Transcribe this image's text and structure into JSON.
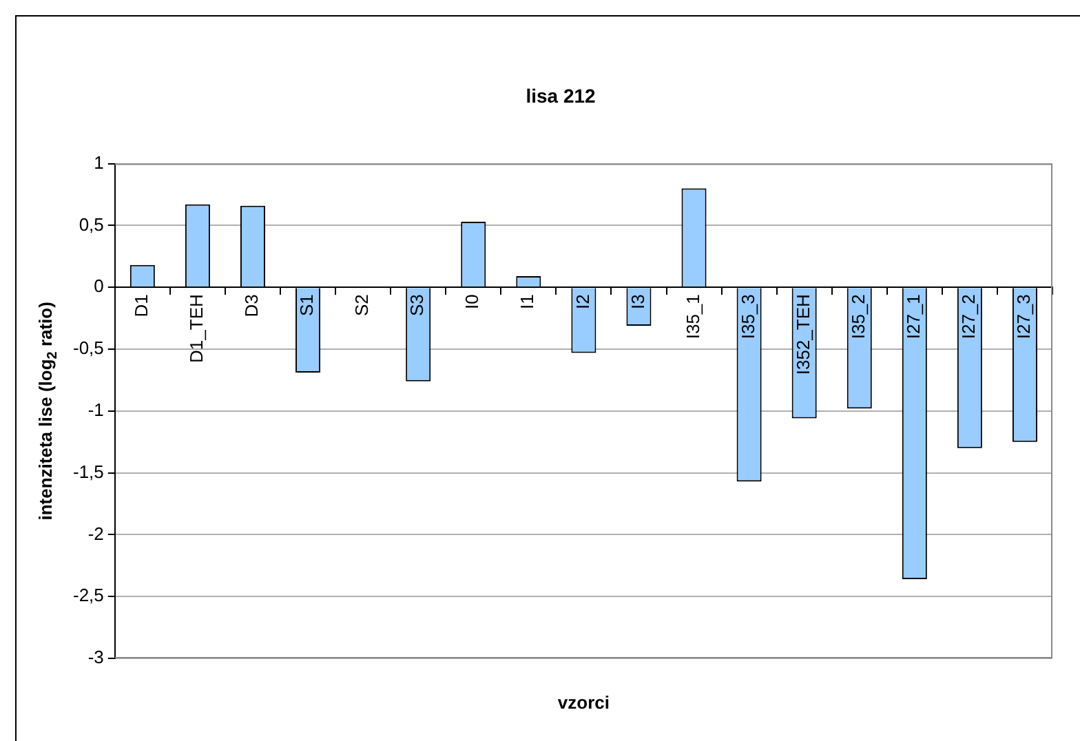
{
  "chart_data": {
    "type": "bar",
    "title": "lisa 212",
    "xlabel": "vzorci",
    "ylabel": "intenziteta lise (log$_{2}$ ratio)",
    "categories": [
      "D1",
      "D1_TEH",
      "D3",
      "S1",
      "S2",
      "S3",
      "I0",
      "I1",
      "I2",
      "I3",
      "I35_1",
      "I35_3",
      "I352_TEH",
      "I35_2",
      "I27_1",
      "I27_2",
      "I27_3"
    ],
    "values": [
      0.18,
      0.67,
      0.66,
      -0.69,
      0,
      -0.76,
      0.53,
      0.09,
      -0.53,
      -0.31,
      0.8,
      -1.57,
      -1.06,
      -0.98,
      -2.36,
      -1.3,
      -1.25
    ],
    "color": "#99ccff",
    "ylim": [
      -3,
      1
    ],
    "yticks": [
      {
        "value": -3,
        "label": "-3"
      },
      {
        "value": -2.5,
        "label": "-2,5"
      },
      {
        "value": -2,
        "label": "-2"
      },
      {
        "value": -1.5,
        "label": "-1,5"
      },
      {
        "value": -1,
        "label": "-1"
      },
      {
        "value": -0.5,
        "label": "-0,5"
      },
      {
        "value": 0,
        "label": "0"
      },
      {
        "value": 0.5,
        "label": "0,5"
      },
      {
        "value": 1,
        "label": "1"
      }
    ],
    "grid": "y",
    "legend": false
  }
}
